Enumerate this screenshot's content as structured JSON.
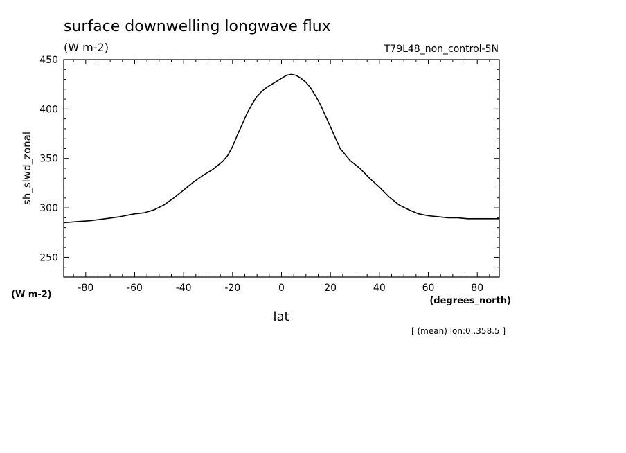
{
  "chart_data": {
    "type": "line",
    "title": "surface downwelling longwave flux",
    "subtitle_units": "(W m-2)",
    "experiment": "T79L48_non_control-5N",
    "xlabel": "lat",
    "x_units": "(degrees_north)",
    "ylabel": "sh_slwd_zonal",
    "y_units": "(W m-2)",
    "note": "[ (mean) lon:0..358.5 ]",
    "xlim": [
      -89,
      89
    ],
    "ylim": [
      230,
      450
    ],
    "x_ticks": [
      -80,
      -60,
      -40,
      -20,
      0,
      20,
      40,
      60,
      80
    ],
    "x_tick_labels": [
      "-80",
      "-60",
      "-40",
      "-20",
      "0",
      "20",
      "40",
      "60",
      "80"
    ],
    "y_ticks": [
      250,
      300,
      350,
      400,
      450
    ],
    "y_tick_labels": [
      "250",
      "300",
      "350",
      "400",
      "450"
    ],
    "grid": false,
    "line_color": "#000000",
    "series": [
      {
        "x": [
          -89,
          -84,
          -78,
          -72,
          -66,
          -60,
          -56,
          -52,
          -48,
          -44,
          -40,
          -36,
          -32,
          -28,
          -24,
          -22,
          -20,
          -18,
          -16,
          -14,
          -12,
          -10,
          -8,
          -6,
          -4,
          -2,
          0,
          2,
          4,
          6,
          8,
          10,
          12,
          14,
          16,
          18,
          20,
          22,
          24,
          26,
          28,
          32,
          36,
          40,
          44,
          48,
          52,
          56,
          60,
          64,
          68,
          72,
          76,
          80,
          84,
          89
        ],
        "y": [
          285,
          286,
          287,
          289,
          291,
          294,
          295,
          298,
          303,
          310,
          318,
          326,
          333,
          339,
          347,
          353,
          362,
          374,
          385,
          396,
          405,
          413,
          418,
          422,
          425,
          428,
          431,
          434,
          435,
          434,
          431,
          427,
          421,
          413,
          404,
          393,
          382,
          371,
          360,
          354,
          348,
          340,
          330,
          321,
          311,
          303,
          298,
          294,
          292,
          291,
          290,
          290,
          289,
          289,
          289,
          289
        ]
      }
    ]
  }
}
